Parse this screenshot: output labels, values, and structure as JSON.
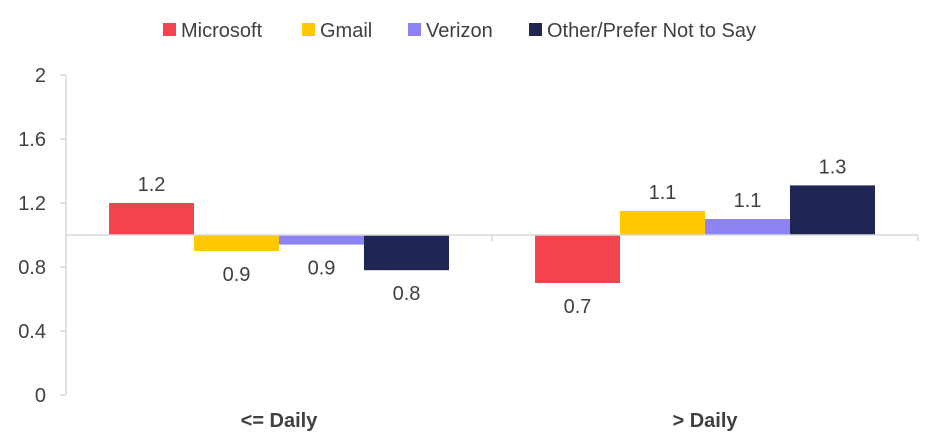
{
  "chart_data": {
    "type": "bar",
    "title": "",
    "xlabel": "",
    "ylabel": "",
    "categories": [
      "<= Daily",
      "> Daily"
    ],
    "baseline": 1.0,
    "ylim": [
      0,
      2
    ],
    "yticks": [
      0,
      0.4,
      0.8,
      1.2,
      1.6,
      2
    ],
    "ytick_labels": [
      "0",
      "0.4",
      "0.8",
      "1.2",
      "1.6",
      "2"
    ],
    "grid": false,
    "legend_position": "top",
    "series": [
      {
        "name": "Microsoft",
        "color": "#F4434F",
        "values": [
          1.2,
          0.7
        ],
        "labels": [
          "1.2",
          "0.7"
        ]
      },
      {
        "name": "Gmail",
        "color": "#FFC800",
        "values": [
          0.9,
          1.15
        ],
        "labels": [
          "0.9",
          "1.1"
        ]
      },
      {
        "name": "Verizon",
        "color": "#8D83F5",
        "values": [
          0.94,
          1.1
        ],
        "labels": [
          "0.9",
          "1.1"
        ]
      },
      {
        "name": "Other/Prefer Not to Say",
        "color": "#1F2654",
        "values": [
          0.78,
          1.31
        ],
        "labels": [
          "0.8",
          "1.3"
        ]
      }
    ]
  }
}
